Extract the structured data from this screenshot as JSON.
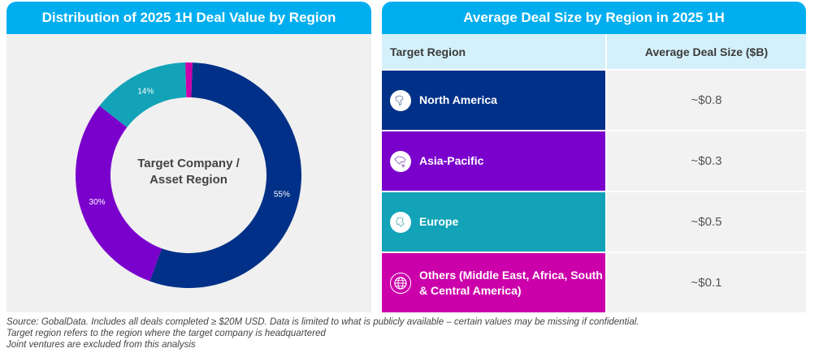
{
  "left": {
    "title": "Distribution of 2025 1H Deal Value by Region"
  },
  "chart_data": {
    "type": "pie",
    "title": "Distribution of 2025 1H Deal Value by Region",
    "center_label_line1": "Target Company /",
    "center_label_line2": "Asset Region",
    "slices": [
      {
        "name": "North America",
        "value": 55,
        "label": "55%",
        "color": "#003087"
      },
      {
        "name": "Asia-Pacific",
        "value": 30,
        "label": "30%",
        "color": "#7a00cc"
      },
      {
        "name": "Europe",
        "value": 14,
        "label": "14%",
        "color": "#12a3b8"
      },
      {
        "name": "Others (Middle East, Africa, South & Central America)",
        "value": 1,
        "label": "",
        "color": "#cc00aa"
      }
    ]
  },
  "right": {
    "title": "Average Deal Size by Region in 2025 1H",
    "headers": {
      "region": "Target Region",
      "avg": "Average Deal Size ($B)"
    },
    "rows": [
      {
        "region": "North America",
        "value": "~$0.8",
        "color": "#003087",
        "icon": "north-america-map-icon"
      },
      {
        "region": "Asia-Pacific",
        "value": "~$0.3",
        "color": "#7a00cc",
        "icon": "asia-pacific-map-icon"
      },
      {
        "region": "Europe",
        "value": "~$0.5",
        "color": "#12a3b8",
        "icon": "europe-map-icon"
      },
      {
        "region": "Others (Middle East, Africa, South & Central America)",
        "value": "~$0.1",
        "color": "#cc00aa",
        "icon": "globe-icon"
      }
    ]
  },
  "footnotes": {
    "line1": "Source: GobalData. Includes all deals completed ≥ $20M USD. Data is limited to what is publicly available – certain values may be missing if confidential.",
    "line2": "Target region refers to the region where the target company is headquartered",
    "line3": "Joint ventures are excluded from this analysis"
  }
}
